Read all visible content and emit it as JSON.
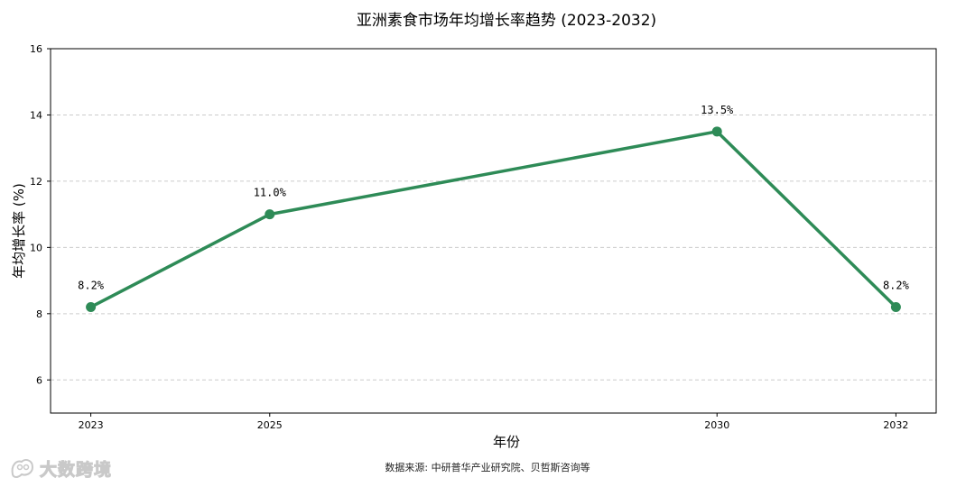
{
  "colors": {
    "line": "#2e8b57",
    "grid": "#cccccc",
    "axis": "#000000"
  },
  "chart_data": {
    "type": "line",
    "title": "亚洲素食市场年均增长率趋势 (2023-2032)",
    "xlabel": "年份",
    "ylabel": "年均增长率 (%)",
    "x": [
      2023,
      2025,
      2030,
      2032
    ],
    "xticks": [
      "2023",
      "2025",
      "2030",
      "2032"
    ],
    "xlim": [
      2022.55,
      2032.45
    ],
    "ylim": [
      5,
      16
    ],
    "yticks": [
      6,
      8,
      10,
      12,
      14,
      16
    ],
    "grid": "y-dashed",
    "series": [
      {
        "name": "年均增长率",
        "values": [
          8.2,
          11.0,
          13.5,
          8.2
        ],
        "labels": [
          "8.2%",
          "11.0%",
          "13.5%",
          "8.2%"
        ]
      }
    ]
  },
  "footer": {
    "source": "数据来源: 中研普华产业研究院、贝哲斯咨询等"
  },
  "watermark": {
    "icon": "logo-icon",
    "text": "大数跨境"
  }
}
